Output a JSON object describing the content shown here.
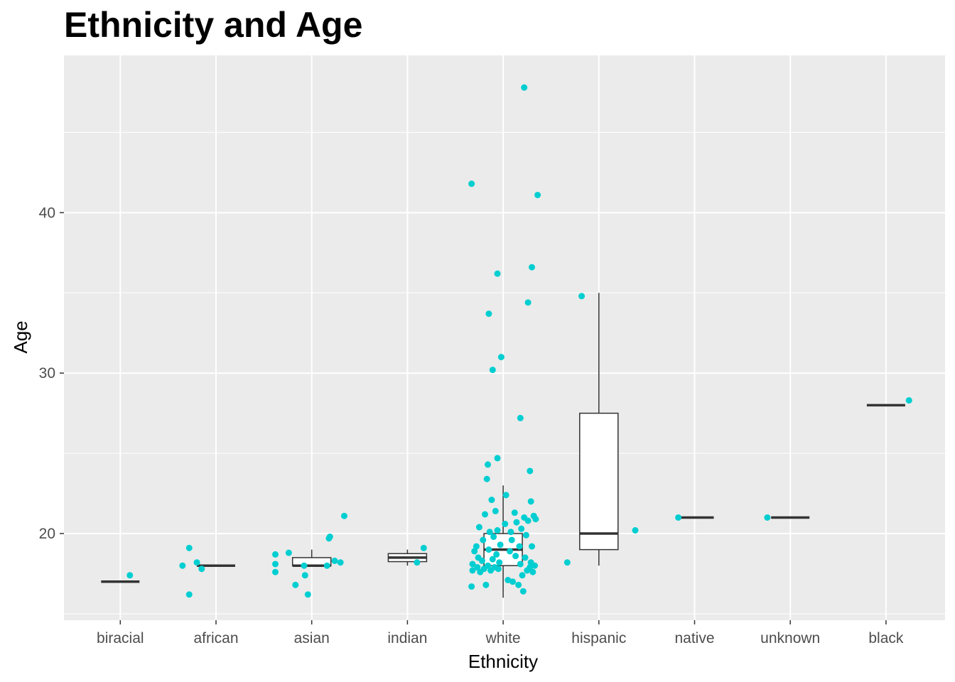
{
  "chart_data": {
    "type": "box+jitter",
    "title": "Ethnicity and Age",
    "xlabel": "Ethnicity",
    "ylabel": "Age",
    "categories": [
      "biracial",
      "african",
      "asian",
      "indian",
      "white",
      "hispanic",
      "native",
      "unknown",
      "black"
    ],
    "yticks": [
      20,
      30,
      40
    ],
    "ylim": [
      14.6,
      49.8
    ],
    "grid": true,
    "colors": {
      "panel": "#EBEBEB",
      "grid": "#FFFFFF",
      "points": "#00CED1",
      "box": "#333333"
    },
    "boxes": [
      {
        "category": "biracial",
        "min": 17,
        "q1": 17,
        "median": 17,
        "q3": 17,
        "max": 17
      },
      {
        "category": "african",
        "min": 18,
        "q1": 18,
        "median": 18,
        "q3": 18,
        "max": 18
      },
      {
        "category": "asian",
        "min": 18,
        "q1": 18,
        "median": 18,
        "q3": 18.5,
        "max": 19
      },
      {
        "category": "indian",
        "min": 18,
        "q1": 18.25,
        "median": 18.5,
        "q3": 18.75,
        "max": 19
      },
      {
        "category": "white",
        "min": 16,
        "q1": 18,
        "median": 19,
        "q3": 20,
        "max": 23
      },
      {
        "category": "hispanic",
        "min": 18,
        "q1": 19,
        "median": 20,
        "q3": 27.5,
        "max": 35
      },
      {
        "category": "native",
        "min": 21,
        "q1": 21,
        "median": 21,
        "q3": 21,
        "max": 21
      },
      {
        "category": "unknown",
        "min": 21,
        "q1": 21,
        "median": 21,
        "q3": 21,
        "max": 21
      },
      {
        "category": "black",
        "min": 28,
        "q1": 28,
        "median": 28,
        "q3": 28,
        "max": 28
      }
    ],
    "points": [
      {
        "category": "biracial",
        "x": 0.1,
        "y": 17.4
      },
      {
        "category": "african",
        "x": -0.35,
        "y": 18.0
      },
      {
        "category": "african",
        "x": -0.28,
        "y": 19.1
      },
      {
        "category": "african",
        "x": -0.28,
        "y": 16.2
      },
      {
        "category": "african",
        "x": -0.2,
        "y": 18.2
      },
      {
        "category": "african",
        "x": -0.15,
        "y": 17.8
      },
      {
        "category": "asian",
        "x": -0.38,
        "y": 18.7
      },
      {
        "category": "asian",
        "x": -0.38,
        "y": 18.1
      },
      {
        "category": "asian",
        "x": -0.38,
        "y": 17.6
      },
      {
        "category": "asian",
        "x": -0.24,
        "y": 18.8
      },
      {
        "category": "asian",
        "x": -0.17,
        "y": 16.8
      },
      {
        "category": "asian",
        "x": -0.07,
        "y": 17.4
      },
      {
        "category": "asian",
        "x": -0.04,
        "y": 16.2
      },
      {
        "category": "asian",
        "x": -0.08,
        "y": 18.0
      },
      {
        "category": "asian",
        "x": 0.16,
        "y": 18.0
      },
      {
        "category": "asian",
        "x": 0.18,
        "y": 19.7
      },
      {
        "category": "asian",
        "x": 0.19,
        "y": 19.8
      },
      {
        "category": "asian",
        "x": 0.24,
        "y": 18.3
      },
      {
        "category": "asian",
        "x": 0.3,
        "y": 18.2
      },
      {
        "category": "asian",
        "x": 0.34,
        "y": 21.1
      },
      {
        "category": "indian",
        "x": 0.1,
        "y": 18.2
      },
      {
        "category": "indian",
        "x": 0.17,
        "y": 19.1
      },
      {
        "category": "white",
        "x": -0.33,
        "y": 16.7
      },
      {
        "category": "white",
        "x": -0.32,
        "y": 17.7
      },
      {
        "category": "white",
        "x": -0.32,
        "y": 18.1
      },
      {
        "category": "white",
        "x": -0.3,
        "y": 18.9
      },
      {
        "category": "white",
        "x": -0.28,
        "y": 19.2
      },
      {
        "category": "white",
        "x": -0.27,
        "y": 17.9
      },
      {
        "category": "white",
        "x": -0.26,
        "y": 18.5
      },
      {
        "category": "white",
        "x": -0.25,
        "y": 20.4
      },
      {
        "category": "white",
        "x": -0.24,
        "y": 17.6
      },
      {
        "category": "white",
        "x": -0.22,
        "y": 18.3
      },
      {
        "category": "white",
        "x": -0.21,
        "y": 19.6
      },
      {
        "category": "white",
        "x": -0.2,
        "y": 17.8
      },
      {
        "category": "white",
        "x": -0.19,
        "y": 21.2
      },
      {
        "category": "white",
        "x": -0.18,
        "y": 16.8
      },
      {
        "category": "white",
        "x": -0.16,
        "y": 18.0
      },
      {
        "category": "white",
        "x": -0.15,
        "y": 19.0
      },
      {
        "category": "white",
        "x": -0.14,
        "y": 20.1
      },
      {
        "category": "white",
        "x": -0.13,
        "y": 17.7
      },
      {
        "category": "white",
        "x": -0.12,
        "y": 22.1
      },
      {
        "category": "white",
        "x": -0.11,
        "y": 18.4
      },
      {
        "category": "white",
        "x": -0.1,
        "y": 19.8
      },
      {
        "category": "white",
        "x": -0.09,
        "y": 17.9
      },
      {
        "category": "white",
        "x": -0.08,
        "y": 21.4
      },
      {
        "category": "white",
        "x": -0.07,
        "y": 18.7
      },
      {
        "category": "white",
        "x": -0.06,
        "y": 20.2
      },
      {
        "category": "white",
        "x": -0.05,
        "y": 17.8
      },
      {
        "category": "white",
        "x": -0.04,
        "y": 18.2
      },
      {
        "category": "white",
        "x": -0.03,
        "y": 19.3
      },
      {
        "category": "white",
        "x": 0.02,
        "y": 20.6
      },
      {
        "category": "white",
        "x": 0.03,
        "y": 22.4
      },
      {
        "category": "white",
        "x": 0.05,
        "y": 17.1
      },
      {
        "category": "white",
        "x": 0.07,
        "y": 18.9
      },
      {
        "category": "white",
        "x": 0.08,
        "y": 20.1
      },
      {
        "category": "white",
        "x": 0.09,
        "y": 19.6
      },
      {
        "category": "white",
        "x": 0.1,
        "y": 17.0
      },
      {
        "category": "white",
        "x": 0.12,
        "y": 21.3
      },
      {
        "category": "white",
        "x": 0.13,
        "y": 18.6
      },
      {
        "category": "white",
        "x": 0.14,
        "y": 20.7
      },
      {
        "category": "white",
        "x": 0.16,
        "y": 16.8
      },
      {
        "category": "white",
        "x": 0.17,
        "y": 19.2
      },
      {
        "category": "white",
        "x": 0.18,
        "y": 18.1
      },
      {
        "category": "white",
        "x": 0.19,
        "y": 20.3
      },
      {
        "category": "white",
        "x": 0.2,
        "y": 17.4
      },
      {
        "category": "white",
        "x": 0.21,
        "y": 16.4
      },
      {
        "category": "white",
        "x": 0.22,
        "y": 21.0
      },
      {
        "category": "white",
        "x": 0.23,
        "y": 18.5
      },
      {
        "category": "white",
        "x": 0.24,
        "y": 19.9
      },
      {
        "category": "white",
        "x": 0.25,
        "y": 17.7
      },
      {
        "category": "white",
        "x": 0.26,
        "y": 20.8
      },
      {
        "category": "white",
        "x": 0.28,
        "y": 17.9
      },
      {
        "category": "white",
        "x": 0.29,
        "y": 18.2
      },
      {
        "category": "white",
        "x": 0.3,
        "y": 19.2
      },
      {
        "category": "white",
        "x": 0.31,
        "y": 17.6
      },
      {
        "category": "white",
        "x": 0.32,
        "y": 21.1
      },
      {
        "category": "white",
        "x": 0.33,
        "y": 18.0
      },
      {
        "category": "white",
        "x": 0.34,
        "y": 20.9
      },
      {
        "category": "white",
        "x": 0.29,
        "y": 22.0
      },
      {
        "category": "white",
        "x": -0.16,
        "y": 24.3
      },
      {
        "category": "white",
        "x": -0.17,
        "y": 23.4
      },
      {
        "category": "white",
        "x": -0.06,
        "y": 24.7
      },
      {
        "category": "white",
        "x": 0.28,
        "y": 23.9
      },
      {
        "category": "white",
        "x": 0.18,
        "y": 27.2
      },
      {
        "category": "white",
        "x": -0.11,
        "y": 30.2
      },
      {
        "category": "white",
        "x": -0.02,
        "y": 31.0
      },
      {
        "category": "white",
        "x": -0.15,
        "y": 33.7
      },
      {
        "category": "white",
        "x": 0.26,
        "y": 34.4
      },
      {
        "category": "white",
        "x": -0.06,
        "y": 36.2
      },
      {
        "category": "white",
        "x": 0.3,
        "y": 36.6
      },
      {
        "category": "white",
        "x": 0.36,
        "y": 41.1
      },
      {
        "category": "white",
        "x": -0.33,
        "y": 41.8
      },
      {
        "category": "white",
        "x": 0.22,
        "y": 47.8
      },
      {
        "category": "hispanic",
        "x": -0.33,
        "y": 18.2
      },
      {
        "category": "hispanic",
        "x": -0.18,
        "y": 34.8
      },
      {
        "category": "hispanic",
        "x": 0.38,
        "y": 20.2
      },
      {
        "category": "native",
        "x": -0.17,
        "y": 21.0
      },
      {
        "category": "unknown",
        "x": -0.24,
        "y": 21.0
      },
      {
        "category": "black",
        "x": 0.24,
        "y": 28.3
      }
    ]
  }
}
